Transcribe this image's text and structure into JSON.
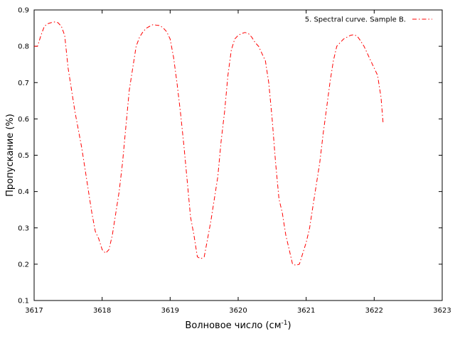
{
  "chart_data": {
    "type": "line",
    "title": "",
    "xlabel": "Волновое число (см",
    "xlabel_sup": "-1",
    "xlabel_close": ")",
    "ylabel": "Пропускание (%)",
    "xlim": [
      3617,
      3623
    ],
    "ylim": [
      0.1,
      0.9
    ],
    "xticks": [
      "3617",
      "3618",
      "3619",
      "3620",
      "3621",
      "3622",
      "3623"
    ],
    "yticks": [
      "0.1",
      "0.2",
      "0.3",
      "0.4",
      "0.5",
      "0.6",
      "0.7",
      "0.8",
      "0.9"
    ],
    "grid": false,
    "legend_position": "top-right",
    "line_color": "#ff0000",
    "line_style": "dash-dot",
    "series": [
      {
        "name": "5. Spectral curve. Sample B.",
        "x": [
          3617.0,
          3617.05,
          3617.1,
          3617.15,
          3617.2,
          3617.25,
          3617.3,
          3617.35,
          3617.4,
          3617.45,
          3617.5,
          3617.55,
          3617.6,
          3617.65,
          3617.7,
          3617.75,
          3617.8,
          3617.85,
          3617.9,
          3617.95,
          3618.0,
          3618.05,
          3618.1,
          3618.15,
          3618.2,
          3618.25,
          3618.3,
          3618.35,
          3618.4,
          3618.45,
          3618.5,
          3618.55,
          3618.6,
          3618.65,
          3618.7,
          3618.75,
          3618.8,
          3618.85,
          3618.9,
          3618.95,
          3619.0,
          3619.05,
          3619.1,
          3619.15,
          3619.2,
          3619.25,
          3619.3,
          3619.35,
          3619.4,
          3619.45,
          3619.5,
          3619.55,
          3619.6,
          3619.65,
          3619.7,
          3619.75,
          3619.8,
          3619.85,
          3619.9,
          3619.95,
          3620.0,
          3620.05,
          3620.1,
          3620.15,
          3620.2,
          3620.25,
          3620.3,
          3620.35,
          3620.4,
          3620.45,
          3620.5,
          3620.55,
          3620.6,
          3620.65,
          3620.7,
          3620.75,
          3620.8,
          3620.85,
          3620.9,
          3620.95,
          3621.0,
          3621.05,
          3621.1,
          3621.15,
          3621.2,
          3621.25,
          3621.3,
          3621.35,
          3621.4,
          3621.45,
          3621.5,
          3621.55,
          3621.6,
          3621.65,
          3621.7,
          3621.75,
          3621.8,
          3621.85,
          3621.9,
          3621.95,
          3622.0,
          3622.05,
          3622.1,
          3622.13
        ],
        "y": [
          0.8,
          0.8,
          0.83,
          0.855,
          0.862,
          0.865,
          0.867,
          0.865,
          0.855,
          0.83,
          0.74,
          0.68,
          0.62,
          0.57,
          0.52,
          0.46,
          0.4,
          0.34,
          0.29,
          0.27,
          0.24,
          0.23,
          0.24,
          0.28,
          0.34,
          0.4,
          0.48,
          0.58,
          0.68,
          0.74,
          0.8,
          0.825,
          0.84,
          0.85,
          0.855,
          0.86,
          0.858,
          0.857,
          0.85,
          0.84,
          0.82,
          0.77,
          0.7,
          0.62,
          0.53,
          0.43,
          0.33,
          0.28,
          0.22,
          0.215,
          0.22,
          0.27,
          0.32,
          0.38,
          0.44,
          0.54,
          0.62,
          0.72,
          0.79,
          0.82,
          0.83,
          0.835,
          0.838,
          0.835,
          0.825,
          0.81,
          0.8,
          0.78,
          0.76,
          0.7,
          0.6,
          0.48,
          0.38,
          0.34,
          0.28,
          0.24,
          0.2,
          0.197,
          0.2,
          0.23,
          0.26,
          0.3,
          0.36,
          0.42,
          0.48,
          0.56,
          0.63,
          0.7,
          0.76,
          0.8,
          0.81,
          0.82,
          0.825,
          0.83,
          0.832,
          0.828,
          0.815,
          0.8,
          0.78,
          0.76,
          0.74,
          0.72,
          0.66,
          0.59
        ]
      }
    ]
  }
}
